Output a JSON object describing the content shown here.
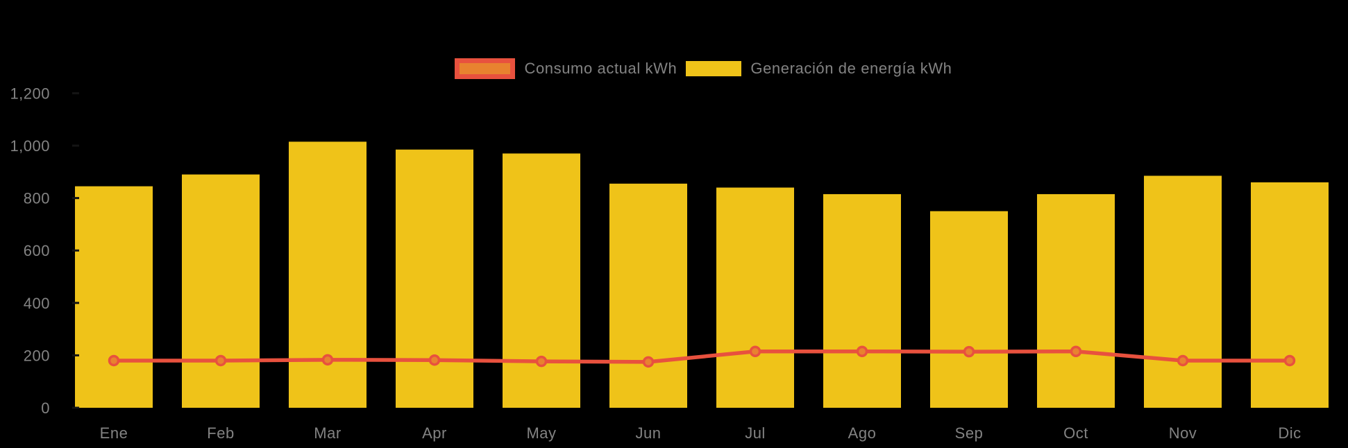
{
  "chart_data": {
    "type": "bar",
    "subtype": "bar-with-line-overlay",
    "title": "",
    "xlabel": "",
    "ylabel": "",
    "categories": [
      "Ene",
      "Feb",
      "Mar",
      "Apr",
      "May",
      "Jun",
      "Jul",
      "Ago",
      "Sep",
      "Oct",
      "Nov",
      "Dic"
    ],
    "series": [
      {
        "name": "Generación de energía kWh",
        "type": "bar",
        "color": "#EFC319",
        "values": [
          845,
          890,
          1015,
          985,
          970,
          855,
          840,
          815,
          750,
          815,
          885,
          860
        ]
      },
      {
        "name": "Consumo actual kWh",
        "type": "line",
        "color": "#E8513E",
        "marker_color": "#E8822F",
        "values": [
          180,
          180,
          183,
          182,
          177,
          175,
          215,
          215,
          214,
          215,
          180,
          180
        ]
      }
    ],
    "ylim": [
      0,
      1200
    ],
    "yticks": [
      0,
      200,
      400,
      600,
      800,
      1000,
      1200
    ],
    "ytick_labels": [
      "0",
      "200",
      "400",
      "600",
      "800",
      "1,000",
      "1,200"
    ],
    "grid": false,
    "legend_position": "top-center",
    "background_color": "#000000",
    "axis_text_color": "#838383"
  },
  "legend": {
    "items": [
      {
        "label": "Consumo actual kWh",
        "swatch": "orange-fill-red-border"
      },
      {
        "label": "Generación de energía kWh",
        "swatch": "yellow-fill"
      }
    ]
  }
}
